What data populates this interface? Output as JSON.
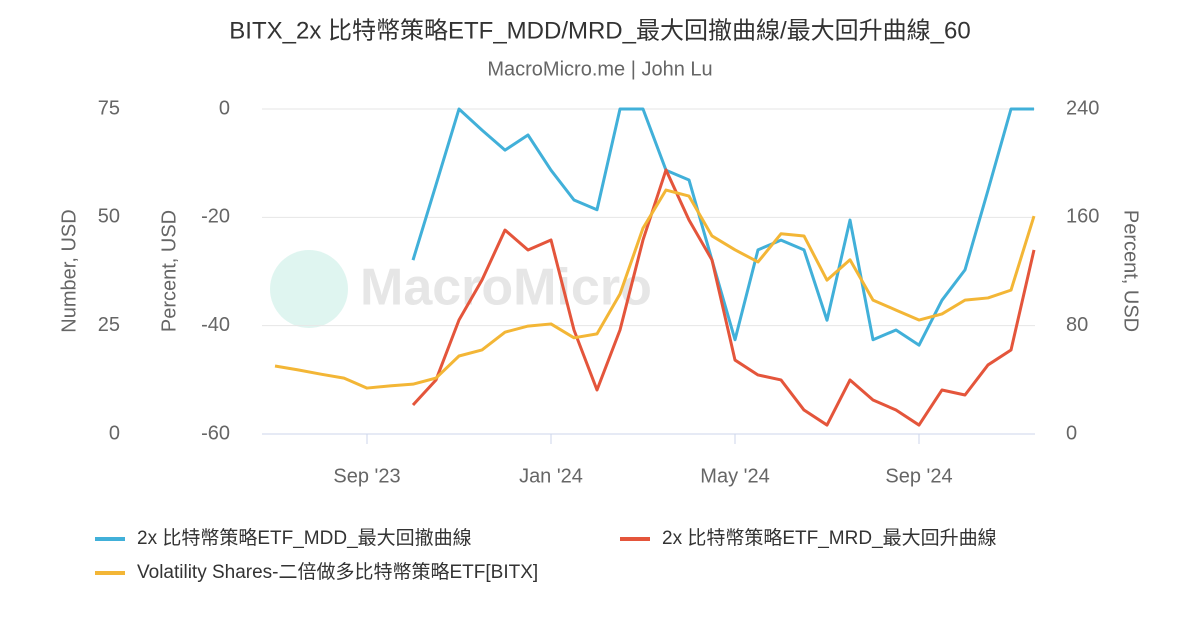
{
  "chart_data": {
    "type": "line",
    "title": "BITX_2x 比特幣策略ETF_MDD/MRD_最大回撤曲線/最大回升曲線_60",
    "subtitle": "MacroMicro.me | John Lu",
    "watermark": "MacroMicro",
    "categories": [
      null,
      null,
      null,
      null,
      "Sep '23",
      null,
      null,
      null,
      null,
      null,
      null,
      null,
      "Jan '24",
      null,
      null,
      null,
      null,
      null,
      null,
      null,
      "May '24",
      null,
      null,
      null,
      null,
      null,
      null,
      null,
      "Sep '24",
      null,
      null,
      null,
      null,
      null
    ],
    "ylabel": "Number, USD",
    "ylim": [
      0,
      75
    ],
    "yticks": [
      0,
      25,
      50,
      75
    ],
    "y2label": "Percent, USD",
    "y2lim": [
      -60,
      0
    ],
    "y2ticks": [
      -60,
      -40,
      -20,
      0
    ],
    "y3label": "Percent, USD",
    "y3lim": [
      0,
      240
    ],
    "y3ticks": [
      0,
      80,
      160,
      240
    ],
    "grid": true,
    "series": [
      {
        "name": "2x 比特幣策略ETF_MDD_最大回撤曲線",
        "color": "#41b0d9",
        "axis": "y2",
        "values": [
          null,
          null,
          null,
          null,
          null,
          null,
          -27.9,
          -14.0,
          0,
          -3.9,
          -7.6,
          -4.8,
          -11.3,
          -16.8,
          -18.6,
          0,
          0,
          -11.3,
          -13.1,
          -27.9,
          -42.6,
          -26.0,
          -24.2,
          -26.0,
          -39.0,
          -20.5,
          -42.6,
          -40.8,
          -43.6,
          -35.3,
          -29.7,
          -15.0,
          0,
          0
        ]
      },
      {
        "name": "2x 比特幣策略ETF_MRD_最大回升曲線",
        "color": "#e4553b",
        "axis": "y3",
        "values": [
          null,
          null,
          null,
          null,
          null,
          null,
          21.4,
          39.9,
          84.2,
          113.7,
          150.6,
          135.9,
          143.3,
          76.8,
          32.5,
          76.8,
          143.3,
          195.0,
          158.0,
          128.5,
          54.6,
          43.6,
          39.9,
          17.7,
          6.6,
          39.9,
          25.1,
          17.7,
          6.6,
          32.5,
          28.8,
          51.0,
          62.0,
          135.9
        ]
      },
      {
        "name": "Volatility Shares-二倍做多比特幣策略ETF[BITX]",
        "color": "#f3b636",
        "axis": "y",
        "values": [
          15.7,
          14.8,
          13.8,
          12.9,
          10.6,
          11.1,
          11.5,
          12.9,
          18.0,
          19.4,
          23.5,
          24.9,
          25.4,
          22.2,
          23.1,
          32.3,
          47.5,
          56.3,
          54.9,
          45.7,
          42.5,
          39.7,
          46.2,
          45.7,
          35.5,
          40.2,
          30.9,
          28.6,
          26.3,
          27.7,
          30.9,
          31.4,
          33.2,
          50.3
        ]
      }
    ]
  }
}
